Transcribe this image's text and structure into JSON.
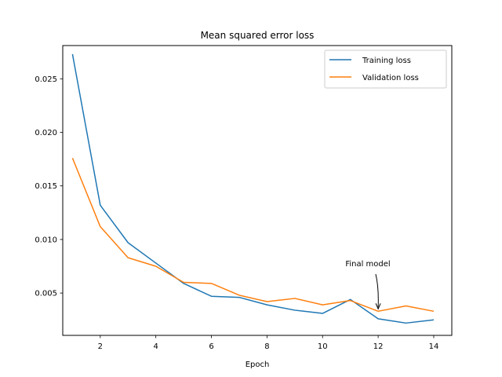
{
  "chart_data": {
    "type": "line",
    "title": "Mean squared error loss",
    "xlabel": "Epoch",
    "ylabel": "",
    "xlim": [
      0.65,
      14.65
    ],
    "ylim": [
      0.00105,
      0.0281
    ],
    "xticks": [
      2,
      4,
      6,
      8,
      10,
      12,
      14
    ],
    "yticks": [
      0.005,
      0.01,
      0.015,
      0.02,
      0.025
    ],
    "ytick_labels": [
      "0.005",
      "0.010",
      "0.015",
      "0.020",
      "0.025"
    ],
    "grid": false,
    "legend_position": "top-right",
    "x": [
      1,
      2,
      3,
      4,
      5,
      6,
      7,
      8,
      9,
      10,
      11,
      12,
      13,
      14
    ],
    "series": [
      {
        "name": "Training loss",
        "color": "#1f77b4",
        "values": [
          0.0273,
          0.0132,
          0.0097,
          0.0078,
          0.0059,
          0.0047,
          0.0046,
          0.0039,
          0.0034,
          0.0031,
          0.0044,
          0.0026,
          0.0022,
          0.0025
        ]
      },
      {
        "name": "Validation loss",
        "color": "#ff7f0e",
        "values": [
          0.0176,
          0.0112,
          0.0083,
          0.0075,
          0.006,
          0.0059,
          0.0048,
          0.0042,
          0.0045,
          0.0039,
          0.0043,
          0.0033,
          0.0038,
          0.0033
        ]
      }
    ],
    "annotation": {
      "text": "Final model",
      "x": 12,
      "y": 0.0033
    }
  }
}
